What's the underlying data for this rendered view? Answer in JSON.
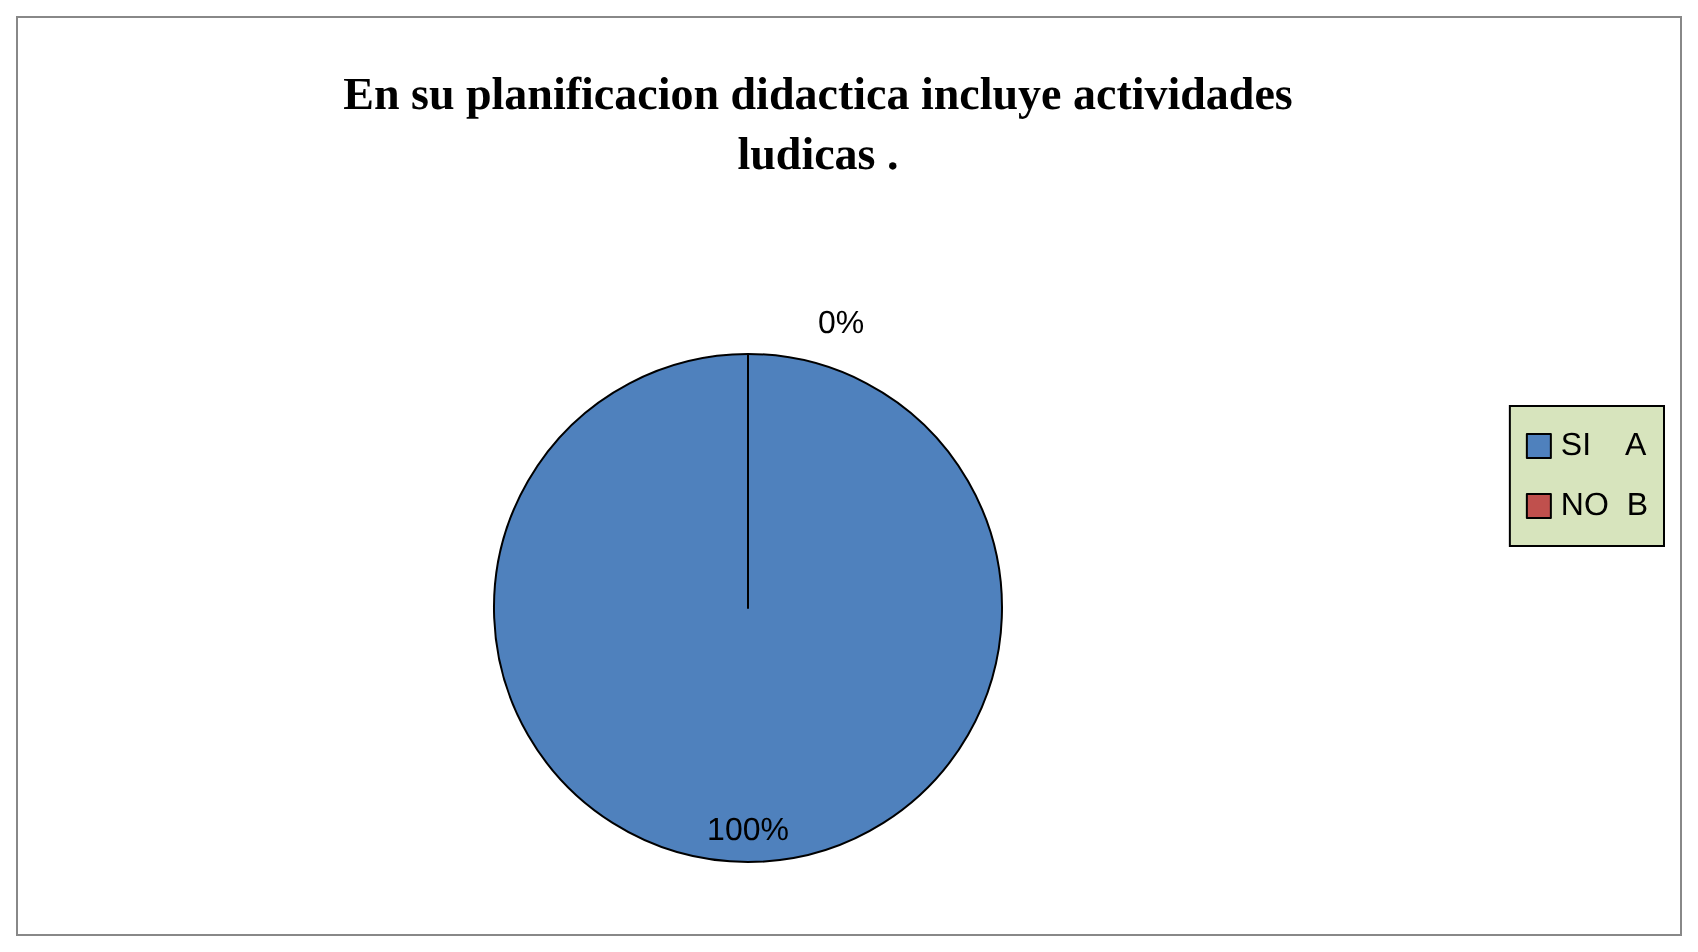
{
  "chart_data": {
    "type": "pie",
    "title": "En su planificacion didactica incluye actividades\nludicas .",
    "categories": [
      "SI    A",
      "NO  B"
    ],
    "values": [
      100,
      0
    ],
    "colors": [
      "#4f81bd",
      "#c0504d"
    ],
    "value_labels": [
      "100%",
      "0%"
    ],
    "legend": "right"
  }
}
